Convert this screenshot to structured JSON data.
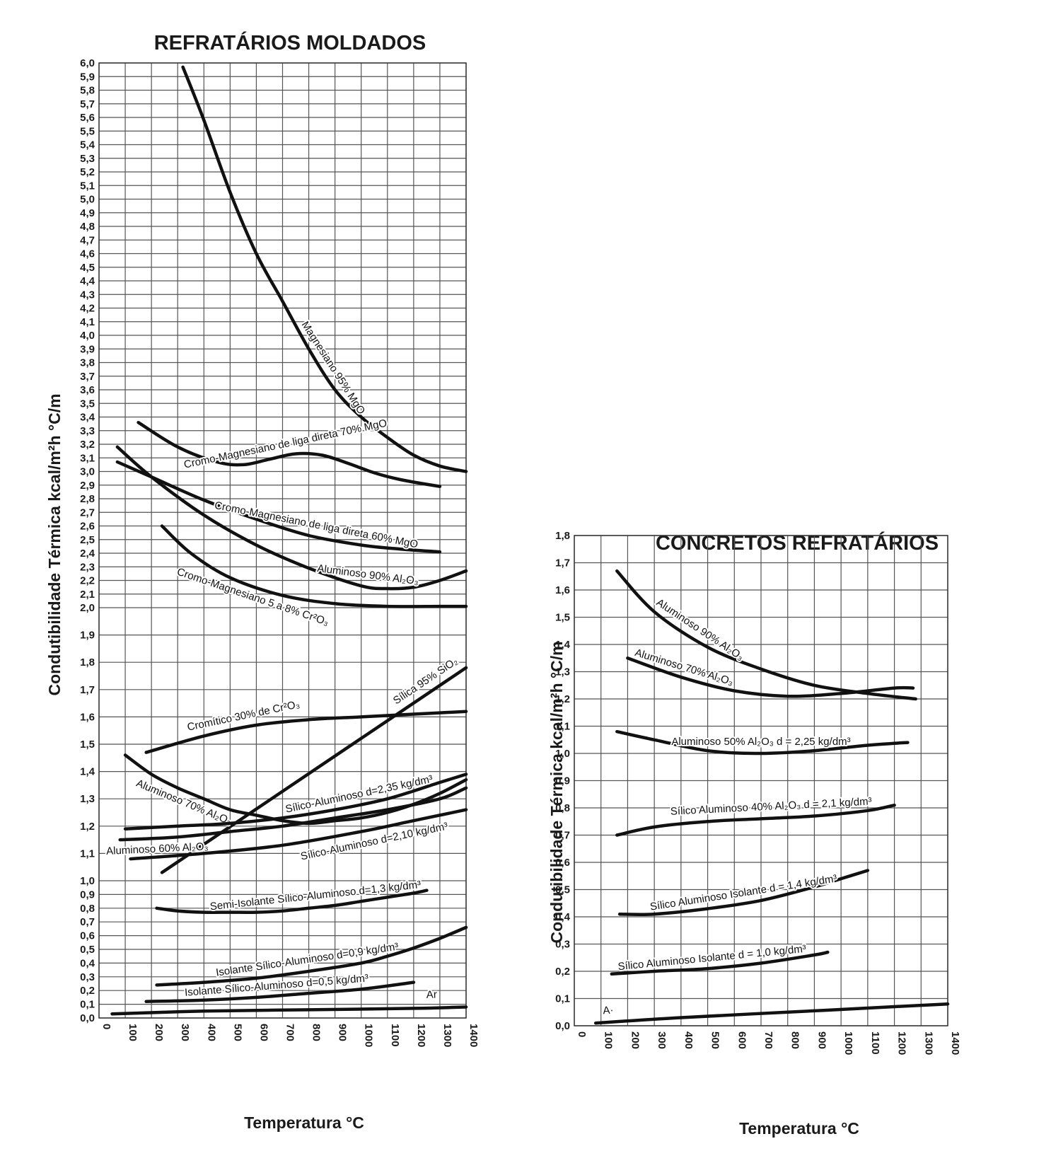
{
  "chart_data": [
    {
      "type": "line",
      "title": "REFRATÁRIOS MOLDADOS",
      "xlabel": "Temperatura °C",
      "ylabel": "Condutibilidade Térmica kcal/m²h °C/m",
      "xlim": [
        0,
        1400
      ],
      "x_ticks": [
        "0",
        "100",
        "200",
        "300",
        "400",
        "500",
        "600",
        "700",
        "800",
        "900",
        "1000",
        "1100",
        "1200",
        "1300",
        "1400"
      ],
      "y_ticks": [
        "0,0",
        "0,1",
        "0,2",
        "0,3",
        "0,4",
        "0,5",
        "0,6",
        "0,7",
        "0,8",
        "0,9",
        "1,0",
        "1,1",
        "1,2",
        "1,3",
        "1,4",
        "1,5",
        "1,6",
        "1,7",
        "1,8",
        "1,9",
        "2,0",
        "2,1",
        "2,2",
        "2,3",
        "2,4",
        "2,5",
        "2,6",
        "2,7",
        "2,8",
        "2,9",
        "3,0",
        "3,1",
        "3,2",
        "3,3",
        "3,4",
        "3,5",
        "3,6",
        "3,7",
        "3,8",
        "3,9",
        "4,0",
        "4,1",
        "4,2",
        "4,3",
        "4,4",
        "4,5",
        "4,6",
        "4,7",
        "4,8",
        "4,9",
        "5,0",
        "5,1",
        "5,2",
        "5,3",
        "5,4",
        "5,5",
        "5,6",
        "5,7",
        "5,8",
        "5,9",
        "6,0"
      ],
      "grid": true,
      "series": [
        {
          "name": "Magnesiano 95% MgO",
          "label_at": 860,
          "label_dy": -10,
          "x": [
            320,
            400,
            500,
            600,
            700,
            800,
            900,
            1000,
            1100,
            1200,
            1300,
            1400
          ],
          "y": [
            5.97,
            5.58,
            5.05,
            4.6,
            4.25,
            3.9,
            3.6,
            3.4,
            3.25,
            3.12,
            3.04,
            3.0
          ]
        },
        {
          "name": "Cromo-Magnesiano de liga direta 70% MgO",
          "label_at": 720,
          "label_dy": -12,
          "x": [
            150,
            300,
            450,
            550,
            650,
            750,
            850,
            950,
            1050,
            1150,
            1300
          ],
          "y": [
            3.36,
            3.18,
            3.07,
            3.05,
            3.09,
            3.13,
            3.12,
            3.06,
            2.99,
            2.94,
            2.89
          ]
        },
        {
          "name": "Cromo-Magnesiano de liga direta 60% MgO",
          "label_at": 820,
          "label_dy": -12,
          "x": [
            70,
            200,
            400,
            600,
            800,
            1000,
            1150,
            1300
          ],
          "y": [
            3.07,
            2.96,
            2.79,
            2.65,
            2.53,
            2.46,
            2.43,
            2.41
          ]
        },
        {
          "name": "Aluminoso 90% Al₂O₃",
          "label_at": 1020,
          "label_dy": -12,
          "x": [
            70,
            200,
            400,
            600,
            800,
            1000,
            1100,
            1200,
            1300,
            1400
          ],
          "y": [
            3.18,
            2.96,
            2.68,
            2.46,
            2.29,
            2.16,
            2.14,
            2.15,
            2.2,
            2.27
          ]
        },
        {
          "name": "Cromo-Magnesiano 5 a 8% Cr²O₃",
          "label_at": 600,
          "label_dy": 20,
          "x": [
            240,
            350,
            500,
            700,
            900,
            1100,
            1300,
            1400
          ],
          "y": [
            2.6,
            2.4,
            2.22,
            2.09,
            2.03,
            2.01,
            2.01,
            2.01
          ]
        },
        {
          "name": "Sílica 95% SiO₂",
          "label_at": 1270,
          "label_dy": -12,
          "x": [
            240,
            1400
          ],
          "y": [
            1.03,
            1.78
          ]
        },
        {
          "name": "Cromítico 30% de Cr²O₃",
          "label_at": 560,
          "label_dy": -12,
          "x": [
            180,
            400,
            600,
            800,
            1000,
            1200,
            1400
          ],
          "y": [
            1.47,
            1.53,
            1.57,
            1.59,
            1.6,
            1.61,
            1.62
          ]
        },
        {
          "name": "Aluminoso 70% Al₂O₃",
          "label_at": 340,
          "label_dy": 20,
          "x": [
            100,
            200,
            300,
            400,
            500,
            600,
            700,
            800,
            900,
            1000,
            1100,
            1200,
            1300,
            1400
          ],
          "y": [
            1.46,
            1.39,
            1.34,
            1.3,
            1.26,
            1.24,
            1.22,
            1.21,
            1.22,
            1.23,
            1.25,
            1.28,
            1.32,
            1.37
          ]
        },
        {
          "name": "Sílico-Aluminoso d=2,35 kg/dm³",
          "label_at": 1000,
          "label_dy": -10,
          "x": [
            100,
            300,
            500,
            700,
            900,
            1100,
            1300,
            1400
          ],
          "y": [
            1.19,
            1.2,
            1.21,
            1.23,
            1.26,
            1.3,
            1.36,
            1.39
          ]
        },
        {
          "name": "Aluminoso 60% Al₂O₃",
          "label_at": 220,
          "label_dy": 20,
          "x": [
            80,
            300,
            500,
            700,
            900,
            1100,
            1300,
            1400
          ],
          "y": [
            1.15,
            1.16,
            1.18,
            1.2,
            1.23,
            1.26,
            1.3,
            1.34
          ]
        },
        {
          "name": "Sílico-Aluminoso d=2,10 kg/dm³",
          "label_at": 1040,
          "label_dy": 22,
          "x": [
            120,
            400,
            700,
            1000,
            1200,
            1400
          ],
          "y": [
            1.08,
            1.1,
            1.13,
            1.18,
            1.22,
            1.26
          ]
        },
        {
          "name": "Semi-Isolante Sílico-Aluminoso d=1,3 kg/dm³",
          "label_at": 830,
          "label_dy": -12,
          "x": [
            220,
            300,
            400,
            500,
            600,
            700,
            800,
            900,
            1000,
            1100,
            1200,
            1250
          ],
          "y": [
            0.8,
            0.78,
            0.77,
            0.77,
            0.77,
            0.78,
            0.8,
            0.82,
            0.85,
            0.88,
            0.91,
            0.93
          ]
        },
        {
          "name": "Isolante Sílico-Aluminoso d=0,9 kg/dm³",
          "label_at": 800,
          "label_dy": -12,
          "x": [
            220,
            400,
            600,
            800,
            1000,
            1100,
            1200,
            1300,
            1400
          ],
          "y": [
            0.24,
            0.26,
            0.29,
            0.34,
            0.4,
            0.45,
            0.51,
            0.58,
            0.66
          ]
        },
        {
          "name": "Isolante Sílico-Aluminoso d=0,5 kg/dm³",
          "label_at": 680,
          "label_dy": -10,
          "x": [
            180,
            400,
            600,
            800,
            1000,
            1200
          ],
          "y": [
            0.12,
            0.13,
            0.15,
            0.18,
            0.21,
            0.26
          ]
        },
        {
          "name": "Ar",
          "label_at": 1270,
          "label_dy": -14,
          "x": [
            50,
            400,
            800,
            1200,
            1400
          ],
          "y": [
            0.03,
            0.05,
            0.06,
            0.07,
            0.08
          ]
        }
      ]
    },
    {
      "type": "line",
      "title": "CONCRETOS REFRATÁRIOS",
      "xlabel": "Temperatura °C",
      "ylabel": "Condutibilidade Térmica kcal/m²h °C/m",
      "xlim": [
        0,
        1400
      ],
      "ylim": [
        0,
        1.8
      ],
      "x_ticks": [
        "0",
        "100",
        "200",
        "300",
        "400",
        "500",
        "600",
        "700",
        "800",
        "900",
        "1000",
        "1100",
        "1200",
        "1300",
        "1400"
      ],
      "y_ticks": [
        "0,0",
        "0,1",
        "0,2",
        "0,3",
        "0,4",
        "0,5",
        "0,6",
        "0,7",
        "0,8",
        "0,9",
        "1,0",
        "1,1",
        "1,2",
        "1,3",
        "1,4",
        "1,5",
        "1,6",
        "1,7",
        "1,8"
      ],
      "grid": true,
      "series": [
        {
          "name": "Aluminoso 90% Al₂O₃",
          "label_at": 450,
          "label_dy": -10,
          "x": [
            160,
            300,
            500,
            700,
            900,
            1100,
            1280
          ],
          "y": [
            1.67,
            1.52,
            1.39,
            1.31,
            1.25,
            1.22,
            1.2
          ]
        },
        {
          "name": "Aluminoso 70% Al₂O₃",
          "label_at": 400,
          "label_dy": -10,
          "x": [
            200,
            400,
            600,
            800,
            1000,
            1200,
            1270
          ],
          "y": [
            1.35,
            1.28,
            1.23,
            1.21,
            1.22,
            1.24,
            1.24
          ]
        },
        {
          "name": "Aluminoso 50% Al₂O₃ d = 2,25 kg/dm³",
          "label_at": 700,
          "label_dy": -12,
          "x": [
            160,
            300,
            500,
            700,
            900,
            1100,
            1250
          ],
          "y": [
            1.08,
            1.05,
            1.01,
            1.0,
            1.01,
            1.03,
            1.04
          ]
        },
        {
          "name": "Sílico Aluminoso 40% Al₂O₃ d = 2,1 kg/dm³",
          "label_at": 740,
          "label_dy": -12,
          "x": [
            160,
            300,
            500,
            700,
            900,
            1100,
            1200
          ],
          "y": [
            0.7,
            0.73,
            0.75,
            0.76,
            0.77,
            0.79,
            0.81
          ]
        },
        {
          "name": "Sílico Aluminoso Isolante d = 1,4 kg/dm³",
          "label_at": 640,
          "label_dy": -10,
          "x": [
            170,
            300,
            500,
            700,
            900,
            1000,
            1100
          ],
          "y": [
            0.41,
            0.41,
            0.43,
            0.46,
            0.51,
            0.54,
            0.57
          ]
        },
        {
          "name": "Sílico Aluminoso Isolante d = 1,0 kg/dm³",
          "label_at": 520,
          "label_dy": -10,
          "x": [
            140,
            300,
            500,
            700,
            900,
            950
          ],
          "y": [
            0.19,
            0.2,
            0.21,
            0.23,
            0.26,
            0.27
          ]
        },
        {
          "name": "A·",
          "label_at": 130,
          "label_dy": -12,
          "x": [
            80,
            400,
            800,
            1200,
            1400
          ],
          "y": [
            0.01,
            0.03,
            0.05,
            0.07,
            0.08
          ]
        }
      ]
    }
  ]
}
